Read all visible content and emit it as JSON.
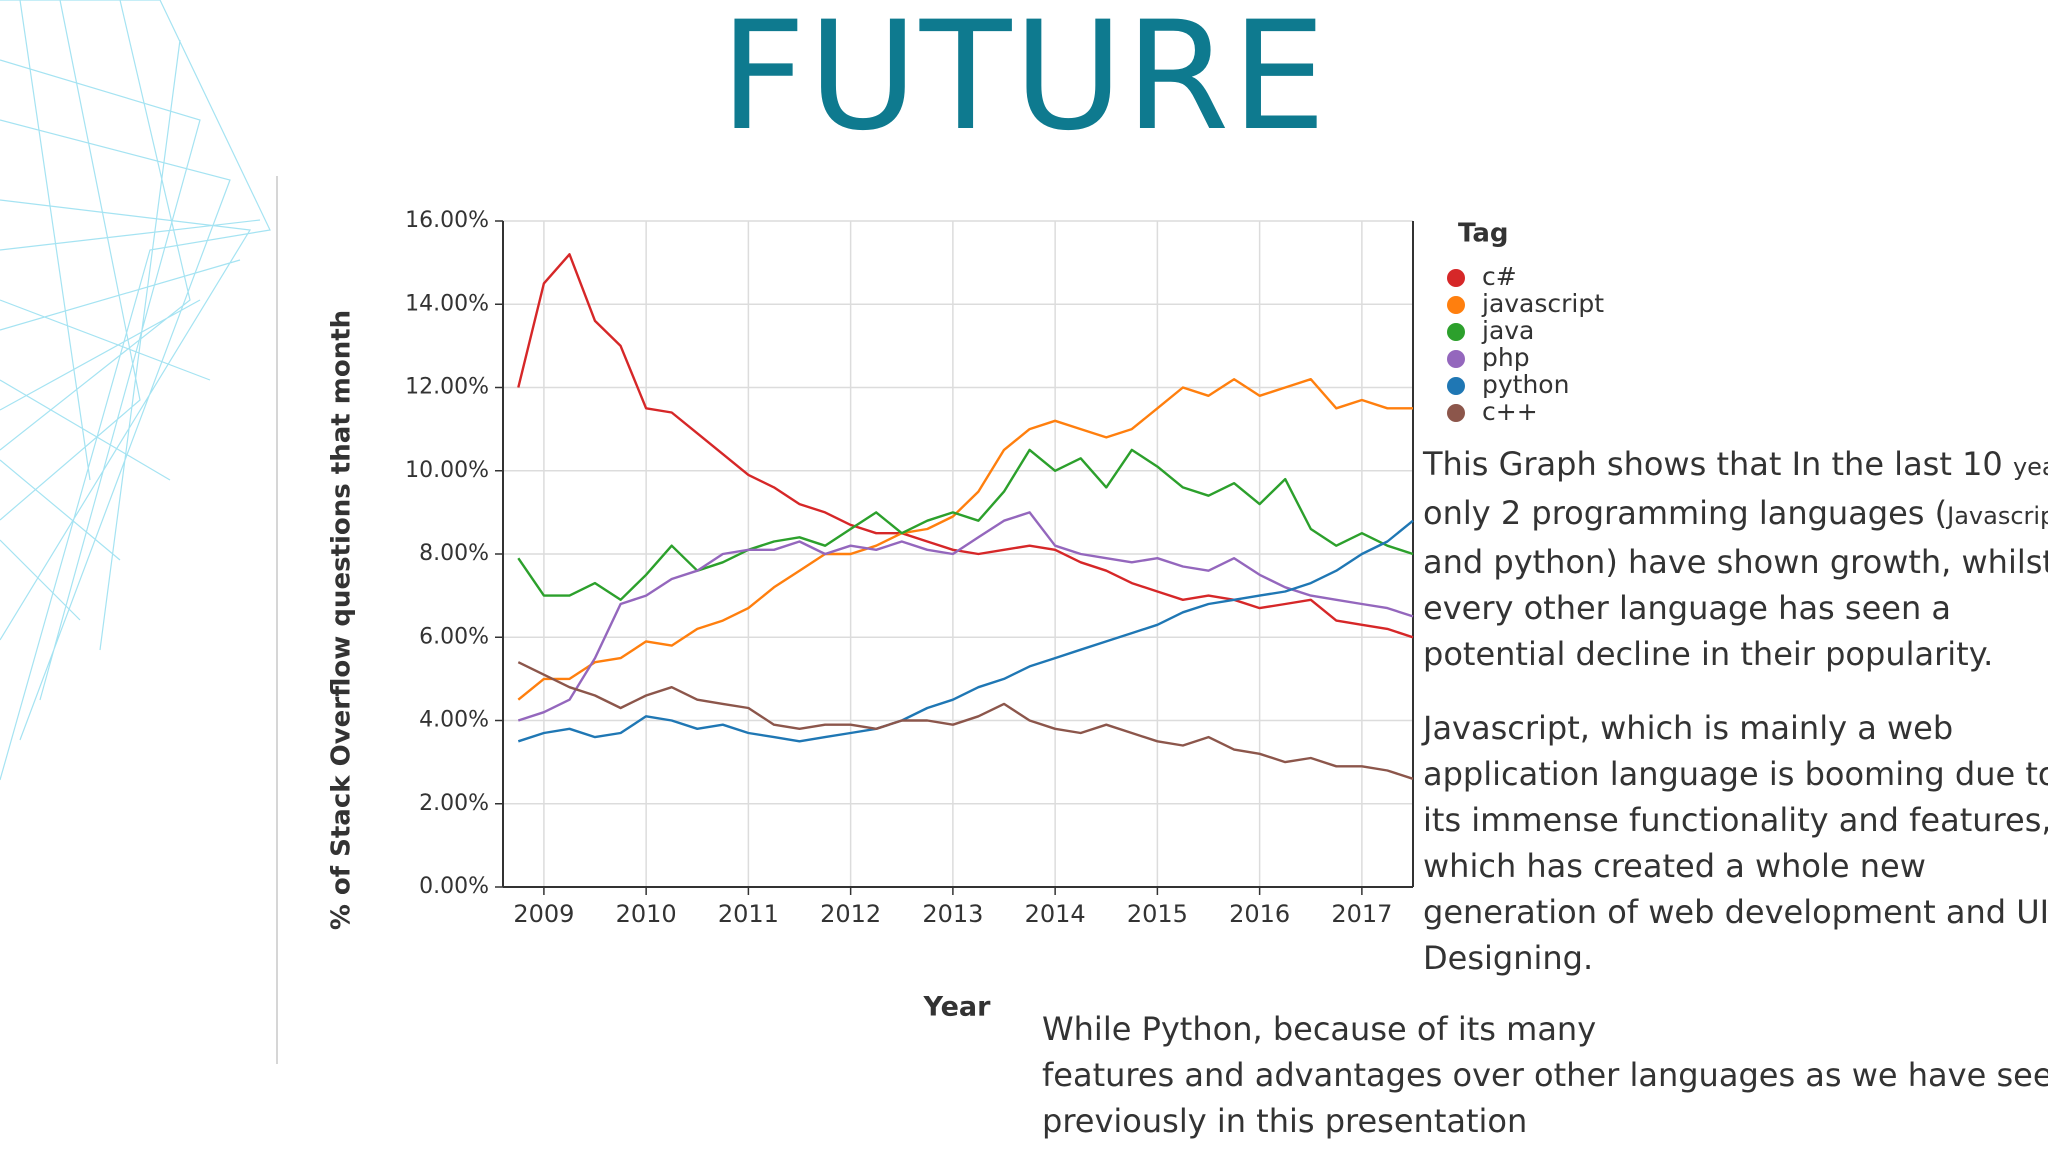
{
  "slide": {
    "title": "FUTURE",
    "paragraph_1": [
      "This Graph shows that In the last 10 ",
      "years",
      "only 2 programming languages (",
      "Javascript",
      "and python) have shown growth, whilst",
      "every other language has seen a",
      "potential decline in their popularity."
    ],
    "paragraph_2": [
      "Javascript, which is mainly a web",
      "application language is booming due to",
      "its immense functionality and features,",
      "which has created a whole new",
      "generation of web development and UI",
      "Designing."
    ],
    "paragraph_3": [
      "While Python, because of its many",
      "features and advantages over other languages as we have seen",
      "previously in this presentation"
    ]
  },
  "chart_data": {
    "type": "line",
    "x_label": "Year",
    "y_label": "% of Stack Overflow questions that month",
    "legend_title": "Tag",
    "x": [
      2008.75,
      2009,
      2009.25,
      2009.5,
      2009.75,
      2010,
      2010.25,
      2010.5,
      2010.75,
      2011,
      2011.25,
      2011.5,
      2011.75,
      2012,
      2012.25,
      2012.5,
      2012.75,
      2013,
      2013.25,
      2013.5,
      2013.75,
      2014,
      2014.25,
      2014.5,
      2014.75,
      2015,
      2015.25,
      2015.5,
      2015.75,
      2016,
      2016.25,
      2016.5,
      2016.75,
      2017,
      2017.25,
      2017.5
    ],
    "xlim": [
      2008.6,
      2017.5
    ],
    "xticks": [
      2009,
      2010,
      2011,
      2012,
      2013,
      2014,
      2015,
      2016,
      2017
    ],
    "ylim": [
      0,
      16
    ],
    "yticks": [
      {
        "value": 0,
        "label": "0.00%"
      },
      {
        "value": 2,
        "label": "2.00%"
      },
      {
        "value": 4,
        "label": "4.00%"
      },
      {
        "value": 6,
        "label": "6.00%"
      },
      {
        "value": 8,
        "label": "8.00%"
      },
      {
        "value": 10,
        "label": "10.00%"
      },
      {
        "value": 12,
        "label": "12.00%"
      },
      {
        "value": 14,
        "label": "14.00%"
      },
      {
        "value": 16,
        "label": "16.00%"
      }
    ],
    "grid": true,
    "series": [
      {
        "name": "c#",
        "color": "#d62728",
        "values": [
          12.0,
          14.5,
          15.2,
          13.6,
          13.0,
          11.5,
          11.4,
          10.9,
          10.4,
          9.9,
          9.6,
          9.2,
          9.0,
          8.7,
          8.5,
          8.5,
          8.3,
          8.1,
          8.0,
          8.1,
          8.2,
          8.1,
          7.8,
          7.6,
          7.3,
          7.1,
          6.9,
          7.0,
          6.9,
          6.7,
          6.8,
          6.9,
          6.4,
          6.3,
          6.2,
          6.0
        ]
      },
      {
        "name": "javascript",
        "color": "#ff7f0e",
        "values": [
          4.5,
          5.0,
          5.0,
          5.4,
          5.5,
          5.9,
          5.8,
          6.2,
          6.4,
          6.7,
          7.2,
          7.6,
          8.0,
          8.0,
          8.2,
          8.5,
          8.6,
          8.9,
          9.5,
          10.5,
          11.0,
          11.2,
          11.0,
          10.8,
          11.0,
          11.5,
          12.0,
          11.8,
          12.2,
          11.8,
          12.0,
          12.2,
          11.5,
          11.7,
          11.5,
          11.5
        ]
      },
      {
        "name": "java",
        "color": "#2ca02c",
        "values": [
          7.9,
          7.0,
          7.0,
          7.3,
          6.9,
          7.5,
          8.2,
          7.6,
          7.8,
          8.1,
          8.3,
          8.4,
          8.2,
          8.6,
          9.0,
          8.5,
          8.8,
          9.0,
          8.8,
          9.5,
          10.5,
          10.0,
          10.3,
          9.6,
          10.5,
          10.1,
          9.6,
          9.4,
          9.7,
          9.2,
          9.8,
          8.6,
          8.2,
          8.5,
          8.2,
          8.0
        ]
      },
      {
        "name": "php",
        "color": "#9467bd",
        "values": [
          4.0,
          4.2,
          4.5,
          5.5,
          6.8,
          7.0,
          7.4,
          7.6,
          8.0,
          8.1,
          8.1,
          8.3,
          8.0,
          8.2,
          8.1,
          8.3,
          8.1,
          8.0,
          8.4,
          8.8,
          9.0,
          8.2,
          8.0,
          7.9,
          7.8,
          7.9,
          7.7,
          7.6,
          7.9,
          7.5,
          7.2,
          7.0,
          6.9,
          6.8,
          6.7,
          6.5
        ]
      },
      {
        "name": "python",
        "color": "#1f77b4",
        "values": [
          3.5,
          3.7,
          3.8,
          3.6,
          3.7,
          4.1,
          4.0,
          3.8,
          3.9,
          3.7,
          3.6,
          3.5,
          3.6,
          3.7,
          3.8,
          4.0,
          4.3,
          4.5,
          4.8,
          5.0,
          5.3,
          5.5,
          5.7,
          5.9,
          6.1,
          6.3,
          6.6,
          6.8,
          6.9,
          7.0,
          7.1,
          7.3,
          7.6,
          8.0,
          8.3,
          8.8
        ]
      },
      {
        "name": "c++",
        "color": "#8c564b",
        "values": [
          5.4,
          5.1,
          4.8,
          4.6,
          4.3,
          4.6,
          4.8,
          4.5,
          4.4,
          4.3,
          3.9,
          3.8,
          3.9,
          3.9,
          3.8,
          4.0,
          4.0,
          3.9,
          4.1,
          4.4,
          4.0,
          3.8,
          3.7,
          3.9,
          3.7,
          3.5,
          3.4,
          3.6,
          3.3,
          3.2,
          3.0,
          3.1,
          2.9,
          2.9,
          2.8,
          2.6
        ]
      }
    ]
  }
}
